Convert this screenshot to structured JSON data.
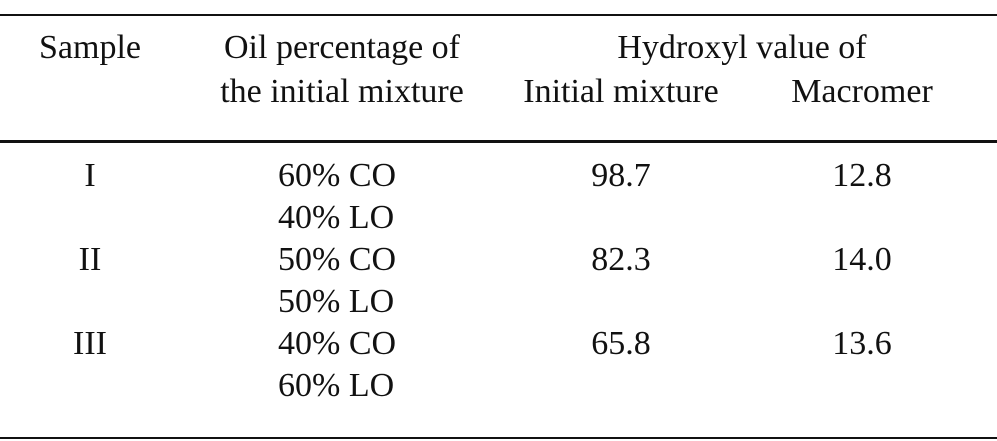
{
  "table": {
    "header": {
      "sample": "Sample",
      "oil": [
        "Oil percentage of",
        "the initial mixture"
      ],
      "hydroxyl": "Hydroxyl value of",
      "initial": "Initial mixture",
      "macromer": "Macromer"
    },
    "rows": [
      {
        "sample": "I",
        "oil": [
          "60% CO",
          "40% LO"
        ],
        "initial": "98.7",
        "macromer": "12.8"
      },
      {
        "sample": "II",
        "oil": [
          "50% CO",
          "50% LO"
        ],
        "initial": "82.3",
        "macromer": "14.0"
      },
      {
        "sample": "III",
        "oil": [
          "40% CO",
          "60% LO"
        ],
        "initial": "65.8",
        "macromer": "13.6"
      }
    ]
  }
}
